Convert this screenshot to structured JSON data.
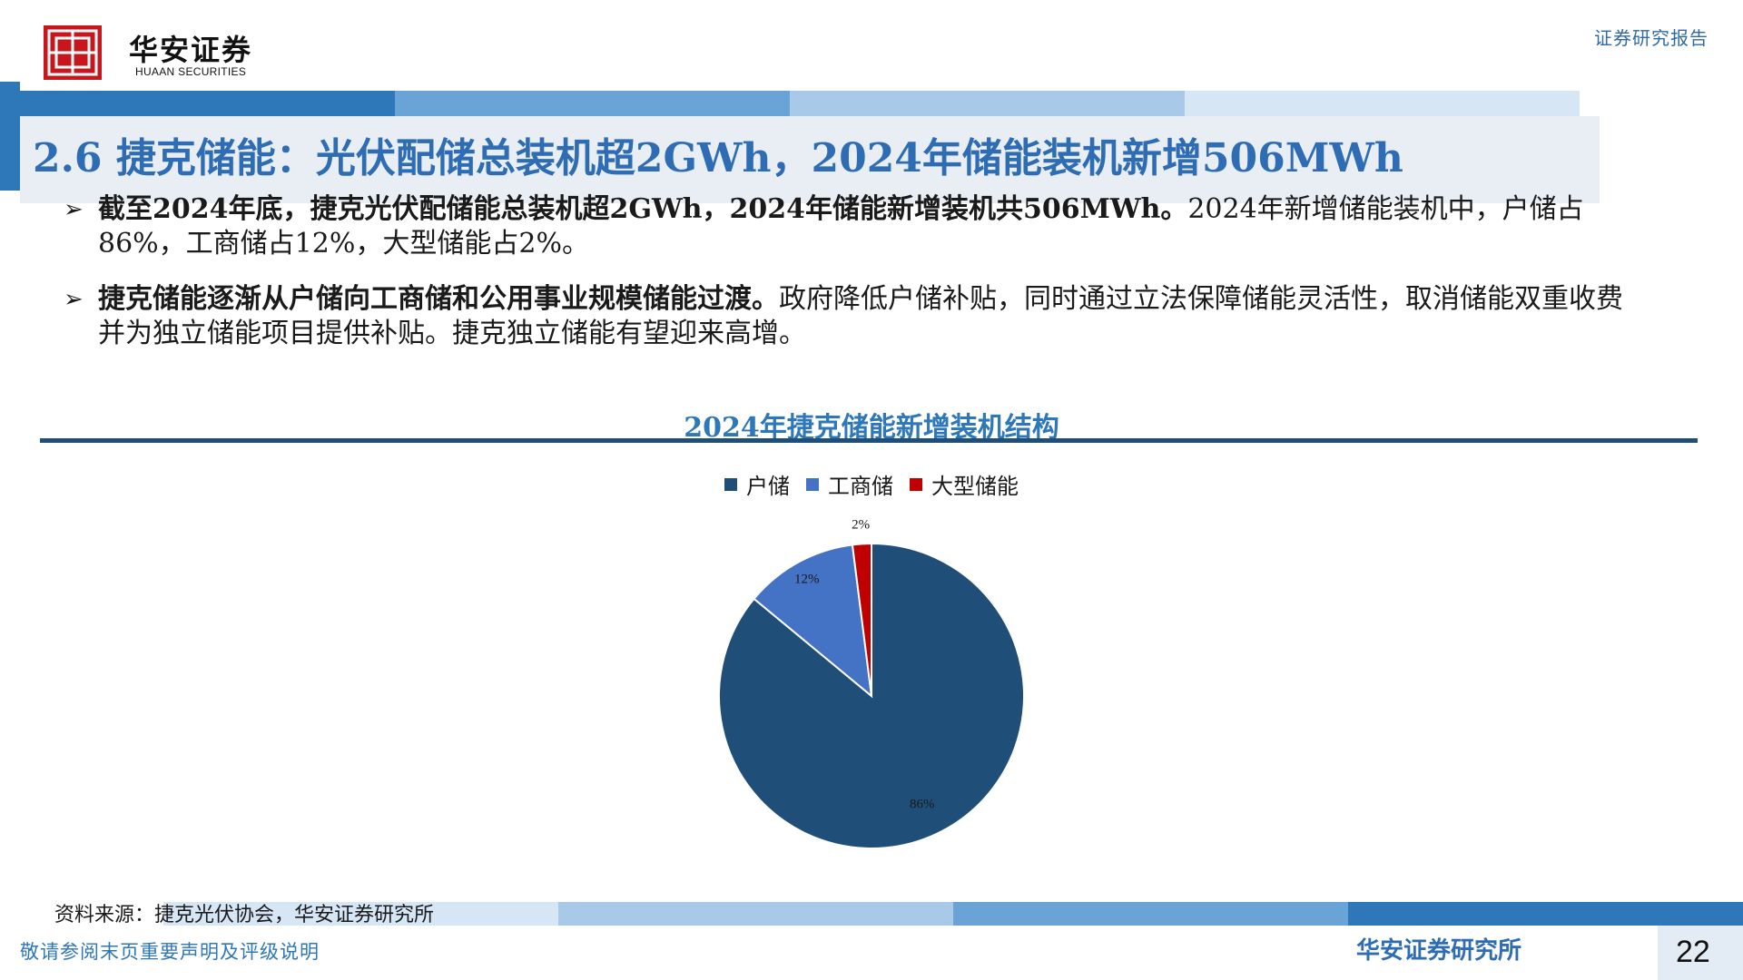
{
  "header": {
    "logo_cn": "华安证券",
    "logo_en": "HUAAN SECURITIES",
    "report_type": "证券研究报告"
  },
  "title": "2.6 捷克储能：光伏配储总装机超2GWh，2024年储能装机新增506MWh",
  "bullets": [
    {
      "bold": "截至2024年底，捷克光伏配储能总装机超2GWh，2024年储能新增装机共506MWh。",
      "text": "2024年新增储能装机中，户储占86%，工商储占12%，大型储能占2%。"
    },
    {
      "bold": "捷克储能逐渐从户储向工商储和公用事业规模储能过渡。",
      "text": "政府降低户储补贴，同时通过立法保障储能灵活性，取消储能双重收费并为独立储能项目提供补贴。捷克独立储能有望迎来高增。"
    }
  ],
  "chart_data": {
    "type": "pie",
    "title": "2024年捷克储能新增装机结构",
    "categories": [
      "户储",
      "工商储",
      "大型储能"
    ],
    "values": [
      86,
      12,
      2
    ],
    "labels": [
      "86%",
      "12%",
      "2%"
    ],
    "colors": [
      "#1f4e79",
      "#4472c4",
      "#c00000"
    ],
    "legend_position": "top"
  },
  "source": "资料来源：捷克光伏协会，华安证券研究所",
  "footer": {
    "disclaimer": "敬请参阅末页重要声明及评级说明",
    "org": "华安证券研究所",
    "page": "22"
  }
}
